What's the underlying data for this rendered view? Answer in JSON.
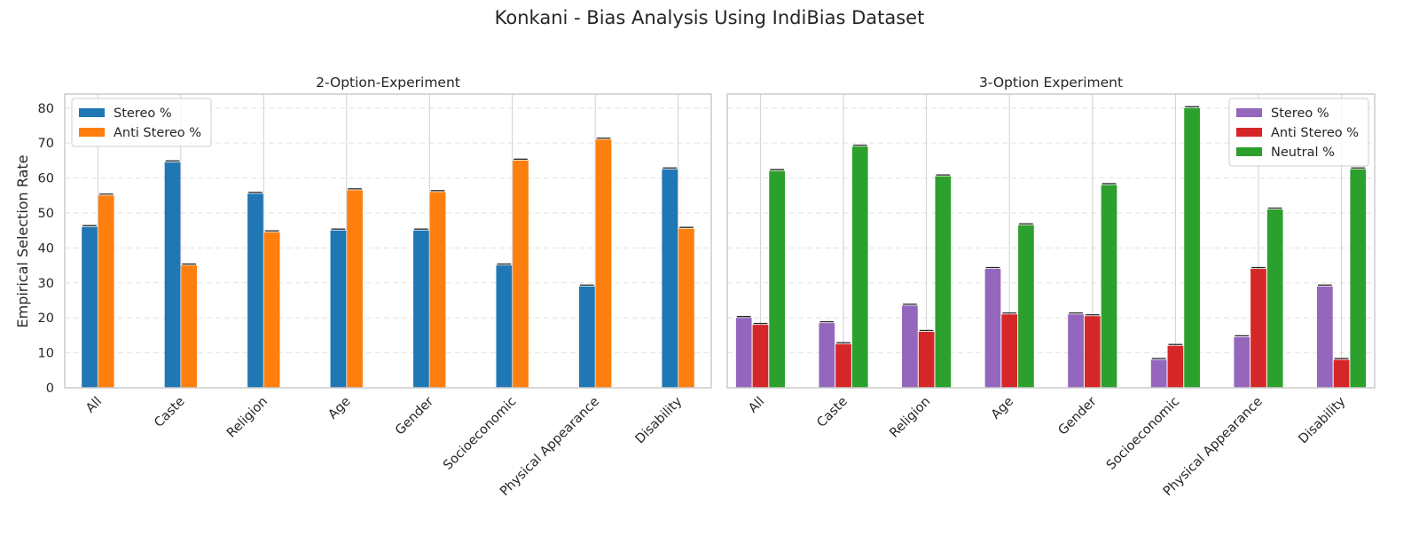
{
  "figure_title": "Konkani - Bias Analysis Using IndiBias Dataset",
  "ylabel": "Empirical Selection Rate",
  "chart_data": [
    {
      "type": "bar",
      "title": "2-Option-Experiment",
      "ylabel": "Empirical Selection Rate",
      "ylim": [
        0,
        84
      ],
      "yticks": [
        0,
        10,
        20,
        30,
        40,
        50,
        60,
        70,
        80
      ],
      "grid": "y-dashed",
      "legend_position": "top-left",
      "categories": [
        "All",
        "Caste",
        "Religion",
        "Age",
        "Gender",
        "Socioeconomic",
        "Physical Appearance",
        "Disability"
      ],
      "series": [
        {
          "name": "Stereo %",
          "color": "#1f77b4",
          "values": [
            46,
            64.5,
            55.5,
            45,
            45,
            35,
            29,
            62.5
          ]
        },
        {
          "name": "Anti Stereo %",
          "color": "#ff7f0e",
          "values": [
            55,
            35,
            44.5,
            56.5,
            56,
            65,
            71,
            45.5
          ]
        }
      ]
    },
    {
      "type": "bar",
      "title": "3-Option Experiment",
      "ylim": [
        0,
        84
      ],
      "yticks": [
        0,
        10,
        20,
        30,
        40,
        50,
        60,
        70,
        80
      ],
      "grid": "y-dashed",
      "legend_position": "top-right",
      "categories": [
        "All",
        "Caste",
        "Religion",
        "Age",
        "Gender",
        "Socioeconomic",
        "Physical Appearance",
        "Disability"
      ],
      "series": [
        {
          "name": "Stereo %",
          "color": "#9467bd",
          "values": [
            20,
            18.5,
            23.5,
            34,
            21,
            8,
            14.5,
            29
          ]
        },
        {
          "name": "Anti Stereo %",
          "color": "#d62728",
          "values": [
            18,
            12.5,
            16,
            21,
            20.5,
            12,
            34,
            8
          ]
        },
        {
          "name": "Neutral %",
          "color": "#2ca02c",
          "values": [
            62,
            69,
            60.5,
            46.5,
            58,
            80,
            51,
            62.5
          ]
        }
      ]
    }
  ]
}
